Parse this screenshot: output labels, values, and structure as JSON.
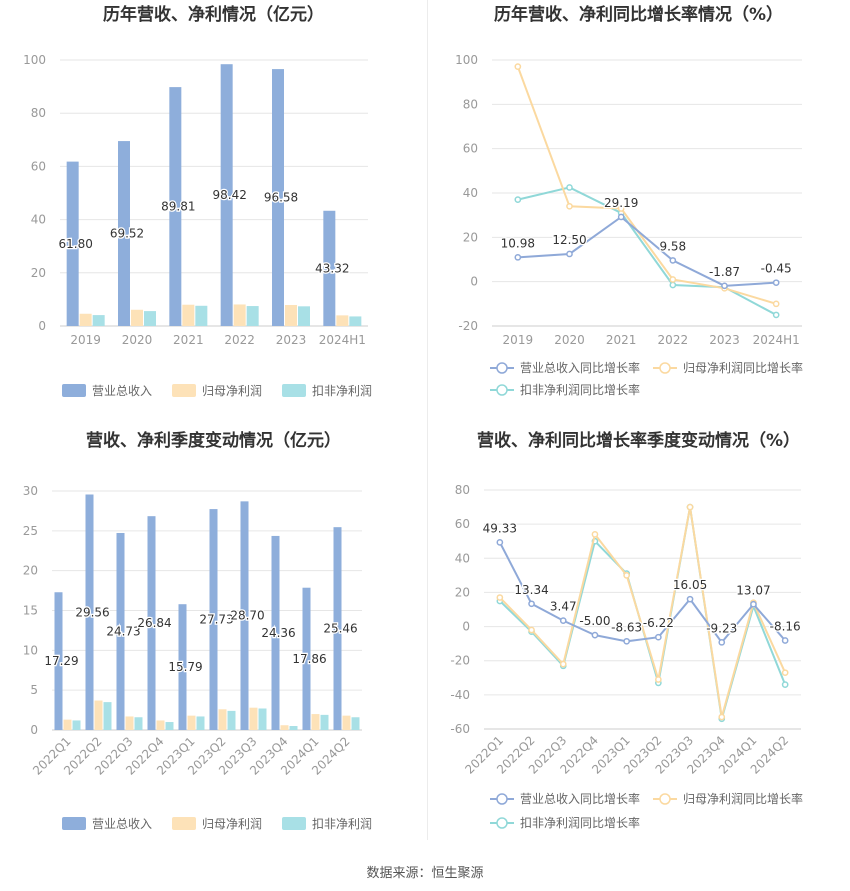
{
  "colors": {
    "revenue": "#8eaedb",
    "net_profit": "#fde2b8",
    "deducted_profit": "#a8e0e6",
    "revenue_line": "#8fa9d8",
    "net_line": "#fbd9a0",
    "deducted_line": "#90d8d8",
    "grid": "#e6e6e6",
    "axis_text": "#999999",
    "title": "#333333"
  },
  "source_label": "数据来源：恒生聚源",
  "chart_data": [
    {
      "type": "bar",
      "title": "历年营收、净利情况（亿元）",
      "categories": [
        "2019",
        "2020",
        "2021",
        "2022",
        "2023",
        "2024H1"
      ],
      "ylim": [
        0,
        100
      ],
      "yticks": [
        0,
        20,
        40,
        60,
        80,
        100
      ],
      "series": [
        {
          "name": "营业总收入",
          "values": [
            61.8,
            69.52,
            89.81,
            98.42,
            96.58,
            43.32
          ],
          "labels": [
            "61.80",
            "69.52",
            "89.81",
            "98.42",
            "96.58",
            "43.32"
          ]
        },
        {
          "name": "归母净利润",
          "values": [
            4.6,
            6.1,
            8.0,
            8.1,
            7.9,
            4.0
          ]
        },
        {
          "name": "扣非净利润",
          "values": [
            4.1,
            5.6,
            7.6,
            7.5,
            7.4,
            3.6
          ]
        }
      ],
      "legend": "bottom"
    },
    {
      "type": "line",
      "title": "历年营收、净利同比增长率情况（%）",
      "categories": [
        "2019",
        "2020",
        "2021",
        "2022",
        "2023",
        "2024H1"
      ],
      "ylim": [
        -20,
        100
      ],
      "yticks": [
        -20,
        0,
        20,
        40,
        60,
        80,
        100
      ],
      "series": [
        {
          "name": "营业总收入同比增长率",
          "values": [
            10.98,
            12.5,
            29.19,
            9.58,
            -1.87,
            -0.45
          ],
          "labels": [
            "10.98",
            "12.50",
            "29.19",
            "9.58",
            "-1.87",
            "-0.45"
          ]
        },
        {
          "name": "归母净利润同比增长率",
          "values": [
            97,
            34,
            33,
            1,
            -3,
            -10
          ]
        },
        {
          "name": "扣非净利润同比增长率",
          "values": [
            37,
            42.5,
            31,
            -1.5,
            -2.5,
            -15
          ]
        }
      ],
      "legend": "bottom"
    },
    {
      "type": "bar",
      "title": "营收、净利季度变动情况（亿元）",
      "categories": [
        "2022Q1",
        "2022Q2",
        "2022Q3",
        "2022Q4",
        "2023Q1",
        "2023Q2",
        "2023Q3",
        "2023Q4",
        "2024Q1",
        "2024Q2"
      ],
      "ylim": [
        0,
        30
      ],
      "yticks": [
        0,
        5,
        10,
        15,
        20,
        25,
        30
      ],
      "series": [
        {
          "name": "营业总收入",
          "values": [
            17.29,
            29.56,
            24.73,
            26.84,
            15.79,
            27.73,
            28.7,
            24.36,
            17.86,
            25.46
          ],
          "labels": [
            "17.29",
            "29.56",
            "24.73",
            "26.84",
            "15.79",
            "27.73",
            "28.70",
            "24.36",
            "17.86",
            "25.46"
          ]
        },
        {
          "name": "归母净利润",
          "values": [
            1.3,
            3.7,
            1.7,
            1.2,
            1.8,
            2.6,
            2.8,
            0.6,
            2.0,
            1.8
          ]
        },
        {
          "name": "扣非净利润",
          "values": [
            1.2,
            3.5,
            1.6,
            1.0,
            1.7,
            2.4,
            2.7,
            0.5,
            1.9,
            1.6
          ]
        }
      ],
      "legend": "bottom"
    },
    {
      "type": "line",
      "title": "营收、净利同比增长率季度变动情况（%）",
      "categories": [
        "2022Q1",
        "2022Q2",
        "2022Q3",
        "2022Q4",
        "2023Q1",
        "2023Q2",
        "2023Q3",
        "2023Q4",
        "2024Q1",
        "2024Q2"
      ],
      "ylim": [
        -60,
        80
      ],
      "yticks": [
        -60,
        -40,
        -20,
        0,
        20,
        40,
        60,
        80
      ],
      "series": [
        {
          "name": "营业总收入同比增长率",
          "values": [
            49.33,
            13.34,
            3.47,
            -5.0,
            -8.63,
            -6.22,
            16.05,
            -9.23,
            13.07,
            -8.16
          ],
          "labels": [
            "49.33",
            "13.34",
            "3.47",
            "-5.00",
            "-8.63",
            "-6.22",
            "16.05",
            "-9.23",
            "13.07",
            "-8.16"
          ]
        },
        {
          "name": "归母净利润同比增长率",
          "values": [
            17,
            -2,
            -22,
            54,
            30,
            -31,
            70,
            -53,
            14,
            -27
          ]
        },
        {
          "name": "扣非净利润同比增长率",
          "values": [
            15,
            -3,
            -23,
            50,
            31,
            -33,
            70,
            -54,
            12,
            -34
          ]
        }
      ],
      "legend": "bottom"
    }
  ]
}
